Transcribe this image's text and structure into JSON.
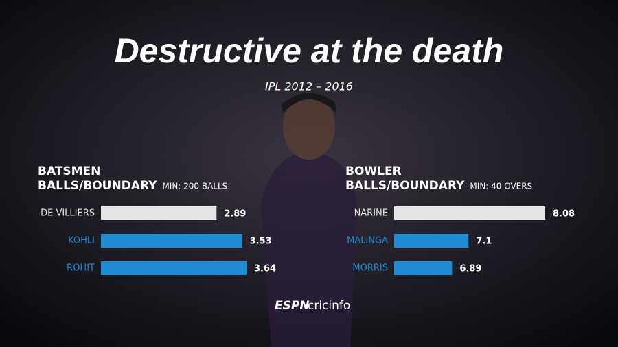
{
  "title": "Destructive at the death",
  "subtitle": "IPL 2012 – 2016",
  "logo": {
    "left": "ESPN",
    "right": "cricinfo"
  },
  "chart_data": [
    {
      "type": "hbar",
      "title": "BATSMEN",
      "subtitle": "BALLS/BOUNDARY",
      "note": "MIN: 200 BALLS",
      "categories": [
        "DE VILLIERS",
        "KOHLI",
        "ROHIT"
      ],
      "values": [
        2.89,
        3.53,
        3.64
      ],
      "colors": [
        "#e6e6e6",
        "#1e8bd2",
        "#1e8bd2"
      ],
      "xlim": [
        0,
        4
      ]
    },
    {
      "type": "hbar",
      "title": "BOWLER",
      "subtitle": "BALLS/BOUNDARY",
      "note": "MIN: 40 OVERS",
      "categories": [
        "NARINE",
        "MALINGA",
        "MORRIS"
      ],
      "values": [
        8.08,
        7.1,
        6.89
      ],
      "colors": [
        "#e6e6e6",
        "#1e8bd2",
        "#1e8bd2"
      ],
      "xlim": [
        6.15,
        8.15
      ]
    }
  ]
}
